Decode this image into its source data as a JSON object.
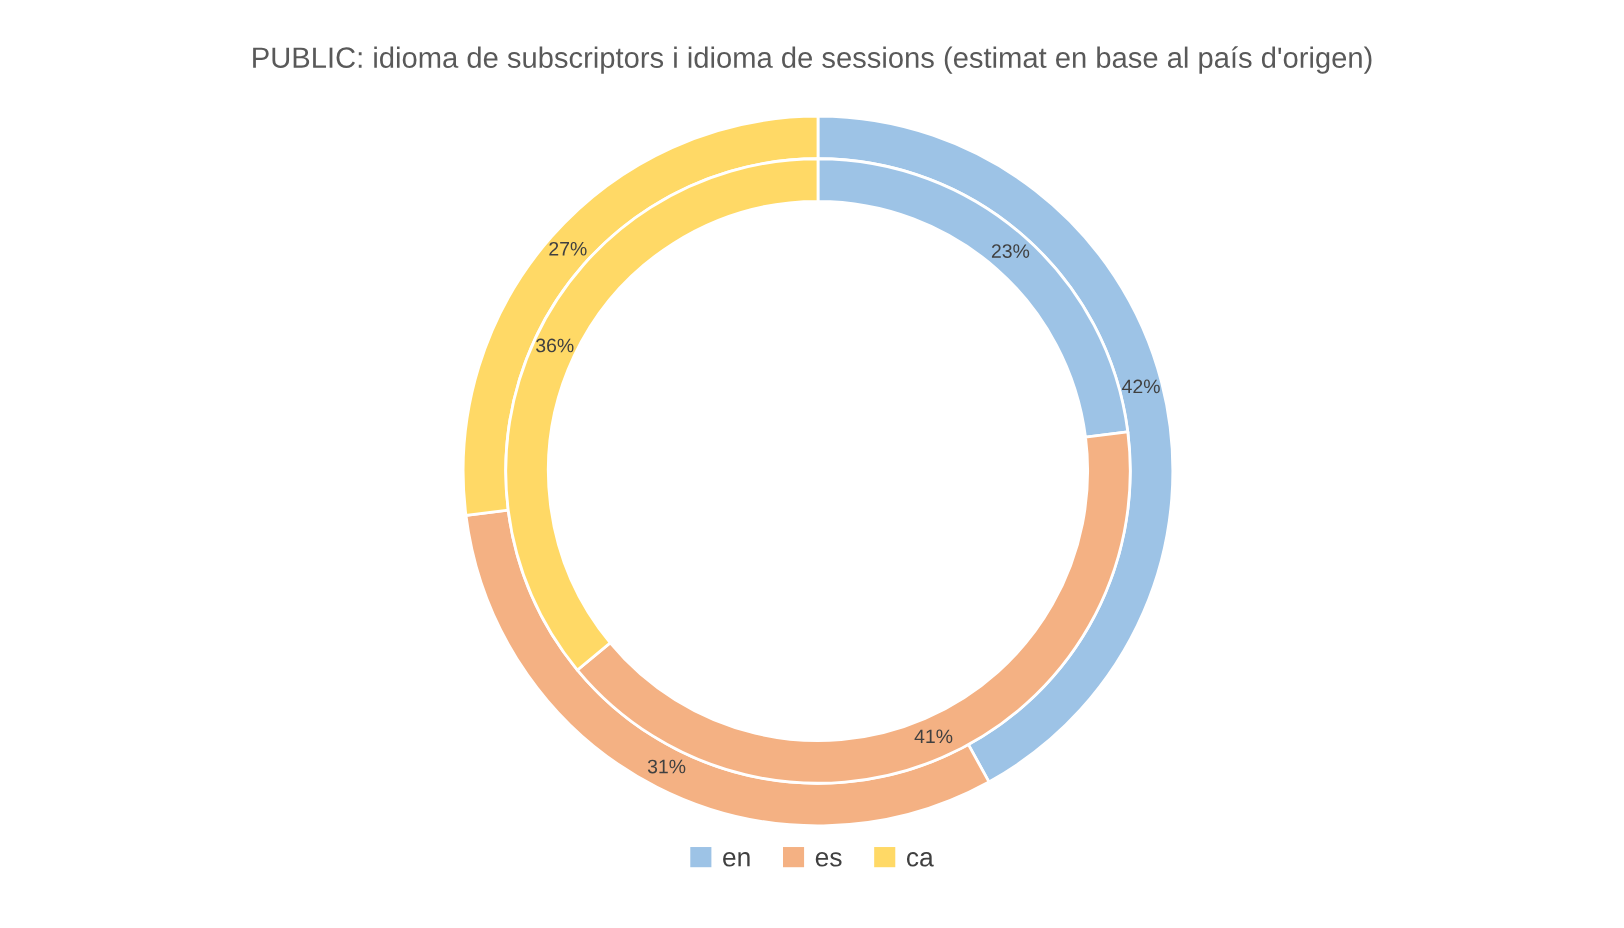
{
  "chart_data": {
    "type": "donut",
    "title": "PUBLIC: idioma de subscriptors i idioma de sessions (estimat en base al país d'origen)",
    "categories": [
      "en",
      "es",
      "ca"
    ],
    "colors": [
      "#9dc3e6",
      "#f4b183",
      "#ffd966"
    ],
    "series": [
      {
        "values": [
          23,
          41,
          36
        ],
        "value_labels": [
          "23%",
          "41%",
          "36%"
        ]
      },
      {
        "values": [
          42,
          31,
          27
        ],
        "value_labels": [
          "42%",
          "31%",
          "27%"
        ]
      }
    ],
    "legend": "bottom"
  }
}
